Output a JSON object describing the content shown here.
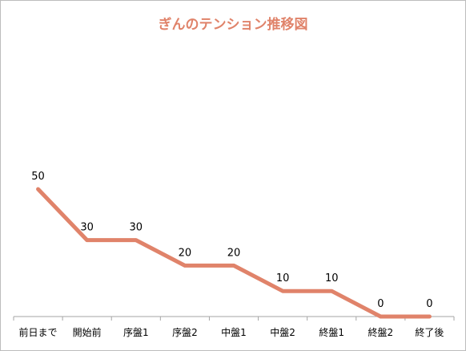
{
  "chart_data": {
    "type": "line",
    "title": "ぎんのテンション推移図",
    "categories": [
      "前日まで",
      "開始前",
      "序盤1",
      "序盤2",
      "中盤1",
      "中盤2",
      "終盤1",
      "終盤2",
      "終了後"
    ],
    "series": [
      {
        "values": [
          50,
          30,
          30,
          20,
          20,
          10,
          10,
          0,
          0
        ]
      }
    ],
    "data_labels": [
      "50",
      "30",
      "30",
      "20",
      "20",
      "10",
      "10",
      "0",
      "0"
    ],
    "ylim": [
      0,
      50
    ],
    "grid": false,
    "legend": "none",
    "line_color": "#e0836a"
  }
}
